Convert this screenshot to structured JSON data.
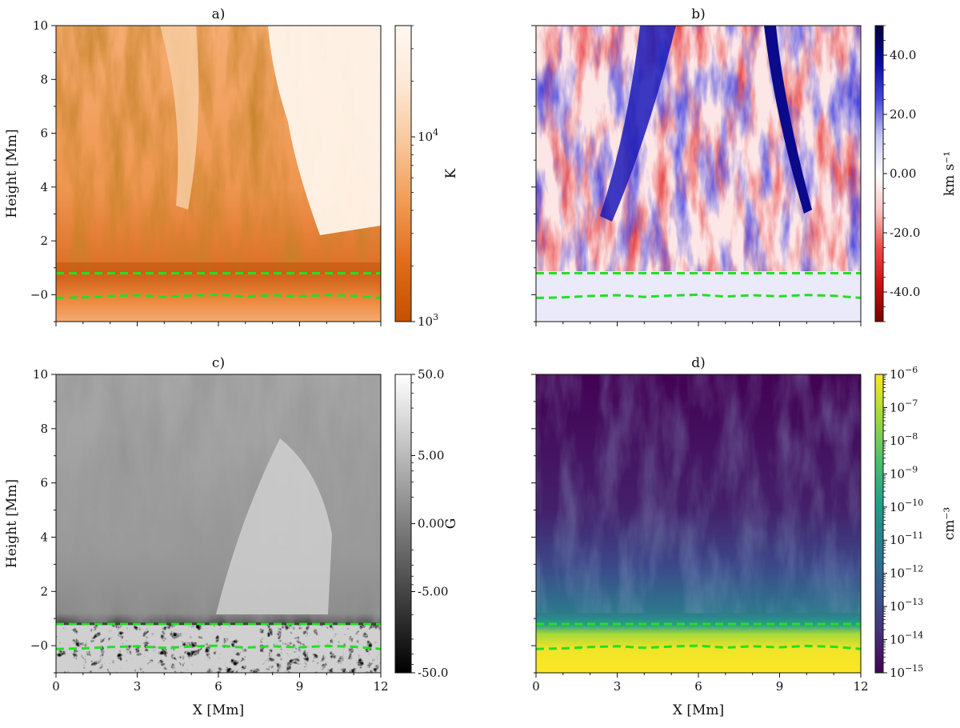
{
  "panels": [
    {
      "title": "a)",
      "xlabel": "",
      "ylabel": "Height [Mm]",
      "colorbar": {
        "label": "K",
        "scale": "log",
        "range": [
          1000,
          40000
        ],
        "ticks": [
          {
            "value": 10000,
            "base": "10",
            "exp": "4"
          },
          {
            "value": 1000,
            "base": "10",
            "exp": "3"
          }
        ],
        "colors": [
          "#c45000",
          "#e06c1a",
          "#f29a52",
          "#f8c69a",
          "#fde8d6",
          "#fff8f0"
        ]
      }
    },
    {
      "title": "b)",
      "xlabel": "",
      "ylabel": "",
      "colorbar": {
        "label": "km s⁻¹",
        "scale": "linear",
        "range": [
          -50,
          50
        ],
        "ticks": [
          {
            "value": 40,
            "label": "40.0"
          },
          {
            "value": 20,
            "label": "20.0"
          },
          {
            "value": 0,
            "label": "0.00"
          },
          {
            "value": -20,
            "label": "-20.0"
          },
          {
            "value": -40,
            "label": "-40.0"
          }
        ],
        "colors": [
          "#7a0000",
          "#c81010",
          "#ee4a4a",
          "#fbc4c4",
          "#ffffff",
          "#c8c8f6",
          "#4848e0",
          "#0a0aa8",
          "#00003a"
        ]
      }
    },
    {
      "title": "c)",
      "xlabel": "X [Mm]",
      "ylabel": "Height [Mm]",
      "colorbar": {
        "label": "G",
        "scale": "symlog",
        "range": [
          -50,
          50
        ],
        "ticks": [
          {
            "value": 50,
            "label": "50.0"
          },
          {
            "value": 5,
            "label": "5.00"
          },
          {
            "value": 0,
            "label": "0.00"
          },
          {
            "value": -5,
            "label": "-5.00"
          },
          {
            "value": -50,
            "label": "-50.0"
          }
        ],
        "colors": [
          "#000000",
          "#ffffff"
        ]
      }
    },
    {
      "title": "d)",
      "xlabel": "X [Mm]",
      "ylabel": "",
      "colorbar": {
        "label": "cm⁻³",
        "scale": "log",
        "range": [
          -15,
          -6
        ],
        "ticks": [
          {
            "value": -6,
            "base": "10",
            "exp": "−6"
          },
          {
            "value": -7,
            "base": "10",
            "exp": "−7"
          },
          {
            "value": -8,
            "base": "10",
            "exp": "−8"
          },
          {
            "value": -9,
            "base": "10",
            "exp": "−9"
          },
          {
            "value": -10,
            "base": "10",
            "exp": "−10"
          },
          {
            "value": -11,
            "base": "10",
            "exp": "−11"
          },
          {
            "value": -12,
            "base": "10",
            "exp": "−12"
          },
          {
            "value": -13,
            "base": "10",
            "exp": "−13"
          },
          {
            "value": -14,
            "base": "10",
            "exp": "−14"
          },
          {
            "value": -15,
            "base": "10",
            "exp": "−15"
          }
        ],
        "colors": [
          "#440154",
          "#46327e",
          "#365c8d",
          "#277f8e",
          "#1fa187",
          "#4ac16d",
          "#a0da39",
          "#fde725"
        ]
      }
    }
  ],
  "chart_data": {
    "type": "heatmap",
    "x_axis": {
      "label": "X [Mm]",
      "range": [
        0,
        12
      ],
      "ticks": [
        0,
        3,
        6,
        9,
        12
      ]
    },
    "y_axis": {
      "label": "Height [Mm]",
      "range": [
        -1,
        10
      ],
      "ticks": [
        0,
        2,
        4,
        6,
        8,
        10
      ],
      "tick_labels": [
        "−0",
        "2",
        "4",
        "6",
        "8",
        "10"
      ]
    },
    "overlay_lines": {
      "color": "#22e022",
      "style": "dashed",
      "upper_line_height": 0.8,
      "lower_line": {
        "x": [
          0,
          1,
          2,
          3,
          4,
          5,
          6,
          7,
          8,
          9,
          10,
          11,
          12
        ],
        "y": [
          -0.12,
          -0.1,
          -0.05,
          -0.02,
          -0.08,
          -0.03,
          0.0,
          -0.07,
          -0.02,
          -0.06,
          -0.01,
          -0.04,
          -0.12
        ]
      }
    },
    "panels": [
      "a)",
      "b)",
      "c)",
      "d)"
    ]
  }
}
